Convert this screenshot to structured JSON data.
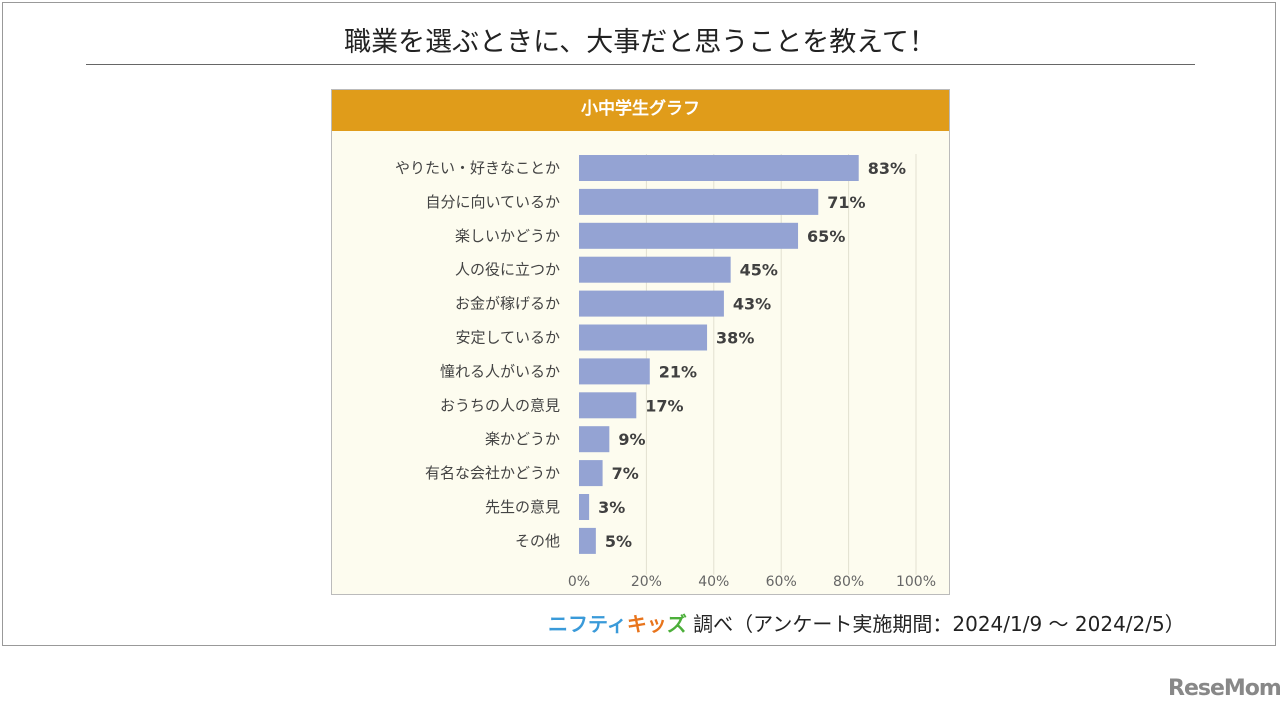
{
  "title": "職業を選ぶときに、大事だと思うことを教えて！",
  "source": {
    "logo": "ニフティキッズ",
    "text": "調べ（アンケート実施期間：2024/1/9 ～ 2024/2/5）"
  },
  "watermark": "ReseMom",
  "chart_data": {
    "type": "bar",
    "orientation": "horizontal",
    "title": "小中学生グラフ",
    "categories": [
      "やりたい・好きなことか",
      "自分に向いているか",
      "楽しいかどうか",
      "人の役に立つか",
      "お金が稼げるか",
      "安定しているか",
      "憧れる人がいるか",
      "おうちの人の意見",
      "楽かどうか",
      "有名な会社かどうか",
      "先生の意見",
      "その他"
    ],
    "values": [
      83,
      71,
      65,
      45,
      43,
      38,
      21,
      17,
      9,
      7,
      3,
      5
    ],
    "value_labels": [
      "83%",
      "71%",
      "65%",
      "45%",
      "43%",
      "38%",
      "21%",
      "17%",
      "9%",
      "7%",
      "3%",
      "5%"
    ],
    "xlim": [
      0,
      100
    ],
    "x_ticks": [
      "0%",
      "20%",
      "40%",
      "60%",
      "80%",
      "100%"
    ],
    "grid": true,
    "bar_color": "#94a3d3",
    "header_color": "#e09c1a"
  }
}
